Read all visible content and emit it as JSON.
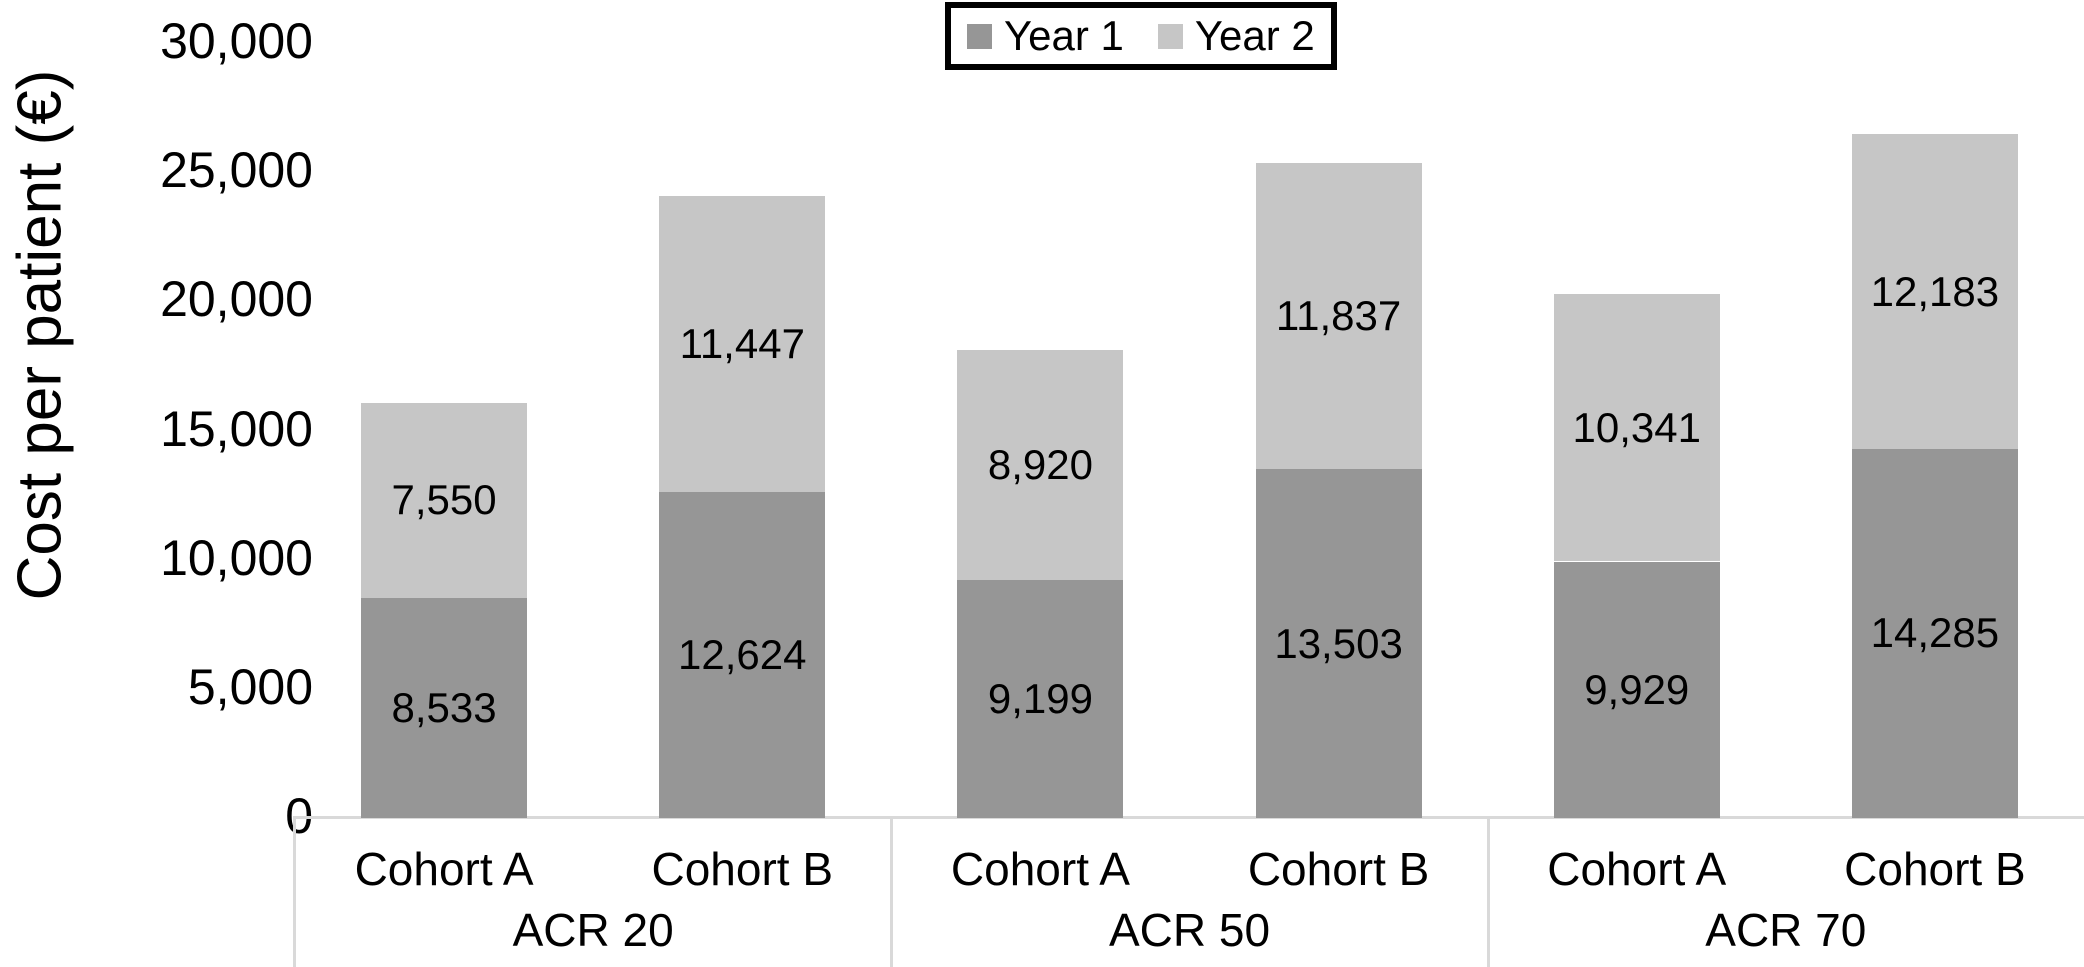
{
  "chart_data": {
    "type": "bar",
    "stacked": true,
    "orientation": "vertical",
    "title": "",
    "ylabel": "Cost per patient (€)",
    "xlabel": "",
    "ylim": [
      0,
      30000
    ],
    "ytick_interval": 5000,
    "ytick_values": [
      0,
      5000,
      10000,
      15000,
      20000,
      25000,
      30000
    ],
    "ytick_labels": [
      "0",
      "5,000",
      "10,000",
      "15,000",
      "20,000",
      "25,000",
      "30,000"
    ],
    "grid": false,
    "group_labels": [
      "ACR 20",
      "ACR 50",
      "ACR 70"
    ],
    "categories": [
      "Cohort A",
      "Cohort B",
      "Cohort A",
      "Cohort B",
      "Cohort A",
      "Cohort B"
    ],
    "series": [
      {
        "name": "Year 1",
        "color": "#969696",
        "values": [
          8533,
          12624,
          9199,
          13503,
          9929,
          14285
        ],
        "value_labels": [
          "8,533",
          "12,624",
          "9,199",
          "13,503",
          "9,929",
          "14,285"
        ]
      },
      {
        "name": "Year 2",
        "color": "#c6c6c6",
        "values": [
          7550,
          11447,
          8920,
          11837,
          10341,
          12183
        ],
        "value_labels": [
          "7,550",
          "11,447",
          "8,920",
          "11,837",
          "10,341",
          "12,183"
        ]
      }
    ],
    "legend": {
      "position": "top-center",
      "entries": [
        "Year 1",
        "Year 2"
      ],
      "border_color": "#000000"
    },
    "colors": {
      "axis_line": "#d9d9d9",
      "text": "#000000",
      "background": "#ffffff"
    }
  }
}
